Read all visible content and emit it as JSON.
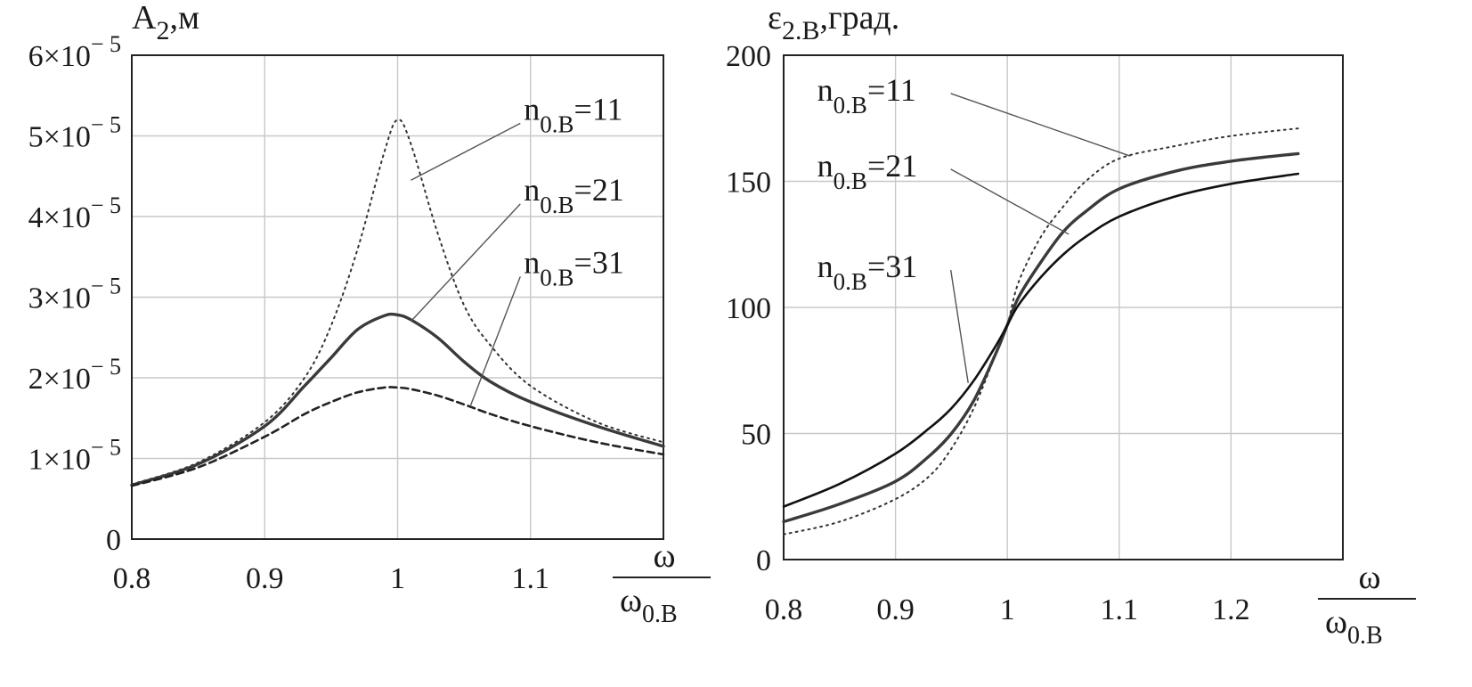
{
  "chart_data": [
    {
      "type": "line",
      "title": "",
      "ylabel": {
        "main": "A",
        "sub": "2",
        "suffix": ",м"
      },
      "xlabel": {
        "num": "ω",
        "den": "ω",
        "den_sub": "0.B"
      },
      "xlim": [
        0.8,
        1.2
      ],
      "ylim": [
        0,
        6e-05
      ],
      "x_ticks": [
        {
          "v": 0.8,
          "label": "0.8"
        },
        {
          "v": 0.9,
          "label": "0.9"
        },
        {
          "v": 1.0,
          "label": "1"
        },
        {
          "v": 1.1,
          "label": "1.1"
        }
      ],
      "y_ticks": [
        {
          "v": 0,
          "m": "0",
          "e": ""
        },
        {
          "v": 1e-05,
          "m": "1×10",
          "e": "− 5"
        },
        {
          "v": 2e-05,
          "m": "2×10",
          "e": "− 5"
        },
        {
          "v": 3e-05,
          "m": "3×10",
          "e": "− 5"
        },
        {
          "v": 4e-05,
          "m": "4×10",
          "e": "− 5"
        },
        {
          "v": 5e-05,
          "m": "5×10",
          "e": "− 5"
        },
        {
          "v": 6e-05,
          "m": "6×10",
          "e": "− 5"
        }
      ],
      "grid": true,
      "series": [
        {
          "style": "dotted",
          "x": [
            0.8,
            0.85,
            0.9,
            0.93,
            0.95,
            0.97,
            0.99,
            1.0,
            1.01,
            1.03,
            1.05,
            1.07,
            1.1,
            1.15,
            1.2
          ],
          "y": [
            6.8e-06,
            9.5e-06,
            1.45e-05,
            2e-05,
            2.65e-05,
            3.6e-05,
            4.8e-05,
            5.2e-05,
            4.9e-05,
            3.8e-05,
            2.9e-05,
            2.4e-05,
            1.9e-05,
            1.45e-05,
            1.2e-05
          ]
        },
        {
          "style": "solid",
          "x": [
            0.8,
            0.85,
            0.9,
            0.93,
            0.95,
            0.97,
            0.99,
            1.0,
            1.01,
            1.03,
            1.05,
            1.07,
            1.1,
            1.15,
            1.2
          ],
          "y": [
            6.7e-06,
            9.3e-06,
            1.4e-05,
            1.9e-05,
            2.25e-05,
            2.6e-05,
            2.77e-05,
            2.78e-05,
            2.72e-05,
            2.5e-05,
            2.2e-05,
            1.95e-05,
            1.7e-05,
            1.4e-05,
            1.15e-05
          ]
        },
        {
          "style": "dashed",
          "x": [
            0.8,
            0.85,
            0.9,
            0.93,
            0.95,
            0.97,
            0.99,
            1.0,
            1.01,
            1.03,
            1.05,
            1.07,
            1.1,
            1.15,
            1.2
          ],
          "y": [
            6.6e-06,
            8.9e-06,
            1.27e-05,
            1.55e-05,
            1.7e-05,
            1.82e-05,
            1.88e-05,
            1.88e-05,
            1.86e-05,
            1.78e-05,
            1.67e-05,
            1.55e-05,
            1.4e-05,
            1.2e-05,
            1.05e-05
          ]
        }
      ],
      "annotations": [
        {
          "text": "n",
          "sub": "0.B",
          "tail": "=11",
          "at": [
            1.095,
            5.2e-05
          ],
          "point": [
            1.01,
            4.45e-05
          ]
        },
        {
          "text": "n",
          "sub": "0.B",
          "tail": "=21",
          "at": [
            1.095,
            4.2e-05
          ],
          "point": [
            1.01,
            2.7e-05
          ]
        },
        {
          "text": "n",
          "sub": "0.B",
          "tail": "=31",
          "at": [
            1.095,
            3.3e-05
          ],
          "point": [
            1.055,
            1.66e-05
          ]
        }
      ]
    },
    {
      "type": "line",
      "title": "",
      "ylabel": {
        "main": "ε",
        "sub": "2.B",
        "suffix": ",град."
      },
      "xlabel": {
        "num": "ω",
        "den": "ω",
        "den_sub": "0.B"
      },
      "xlim": [
        0.8,
        1.3
      ],
      "ylim": [
        0,
        200
      ],
      "x_ticks": [
        {
          "v": 0.8,
          "label": "0.8"
        },
        {
          "v": 0.9,
          "label": "0.9"
        },
        {
          "v": 1.0,
          "label": "1"
        },
        {
          "v": 1.1,
          "label": "1.1"
        },
        {
          "v": 1.2,
          "label": "1.2"
        }
      ],
      "y_ticks": [
        {
          "v": 0,
          "label": "0"
        },
        {
          "v": 50,
          "label": "50"
        },
        {
          "v": 100,
          "label": "100"
        },
        {
          "v": 150,
          "label": "150"
        },
        {
          "v": 200,
          "label": "200"
        }
      ],
      "grid": true,
      "series": [
        {
          "style": "dotted",
          "x": [
            0.8,
            0.85,
            0.9,
            0.93,
            0.95,
            0.97,
            0.99,
            1.0,
            1.01,
            1.03,
            1.05,
            1.07,
            1.1,
            1.15,
            1.2,
            1.26
          ],
          "y": [
            10,
            15,
            24,
            33,
            44,
            60,
            82,
            93,
            110,
            128,
            140,
            150,
            159,
            164,
            168,
            171
          ]
        },
        {
          "style": "solid",
          "x": [
            0.8,
            0.85,
            0.9,
            0.93,
            0.95,
            0.97,
            0.99,
            1.0,
            1.01,
            1.03,
            1.05,
            1.07,
            1.1,
            1.15,
            1.2,
            1.26
          ],
          "y": [
            15,
            22,
            31,
            41,
            50,
            63,
            82,
            93,
            104,
            118,
            130,
            138,
            147,
            154,
            158,
            161
          ]
        },
        {
          "style": "solid2",
          "x": [
            0.8,
            0.85,
            0.9,
            0.93,
            0.95,
            0.97,
            0.99,
            1.0,
            1.01,
            1.03,
            1.05,
            1.07,
            1.1,
            1.15,
            1.2,
            1.26
          ],
          "y": [
            21,
            30,
            42,
            52,
            60,
            71,
            85,
            93,
            101,
            112,
            121,
            128,
            136,
            144,
            149,
            153
          ]
        }
      ],
      "annotations": [
        {
          "text": "n",
          "sub": "0.B",
          "tail": "=11",
          "at": [
            0.83,
            182
          ],
          "point": [
            1.11,
            160
          ]
        },
        {
          "text": "n",
          "sub": "0.B",
          "tail": "=21",
          "at": [
            0.83,
            152
          ],
          "point": [
            1.055,
            129
          ]
        },
        {
          "text": "n",
          "sub": "0.B",
          "tail": "=31",
          "at": [
            0.83,
            112
          ],
          "point": [
            0.965,
            70
          ]
        }
      ]
    }
  ]
}
